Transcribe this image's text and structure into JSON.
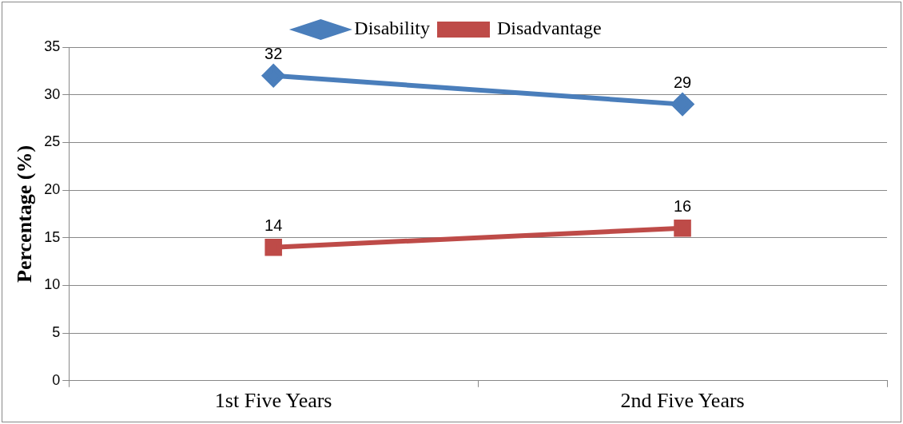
{
  "chart_data": {
    "type": "line",
    "ylabel": "Percentage (%)",
    "categories": [
      "1st Five Years",
      "2nd Five Years"
    ],
    "series": [
      {
        "name": "Disability",
        "color": "#4a7ebb",
        "values": [
          32,
          29
        ],
        "marker": "diamond"
      },
      {
        "name": "Disadvantage",
        "color": "#be4b48",
        "values": [
          14,
          16
        ],
        "marker": "square"
      }
    ],
    "ylim": [
      0,
      35
    ],
    "yticks": [
      0,
      5,
      10,
      15,
      20,
      25,
      30,
      35
    ],
    "grid": "y",
    "legend": "top",
    "data_labels": true
  }
}
